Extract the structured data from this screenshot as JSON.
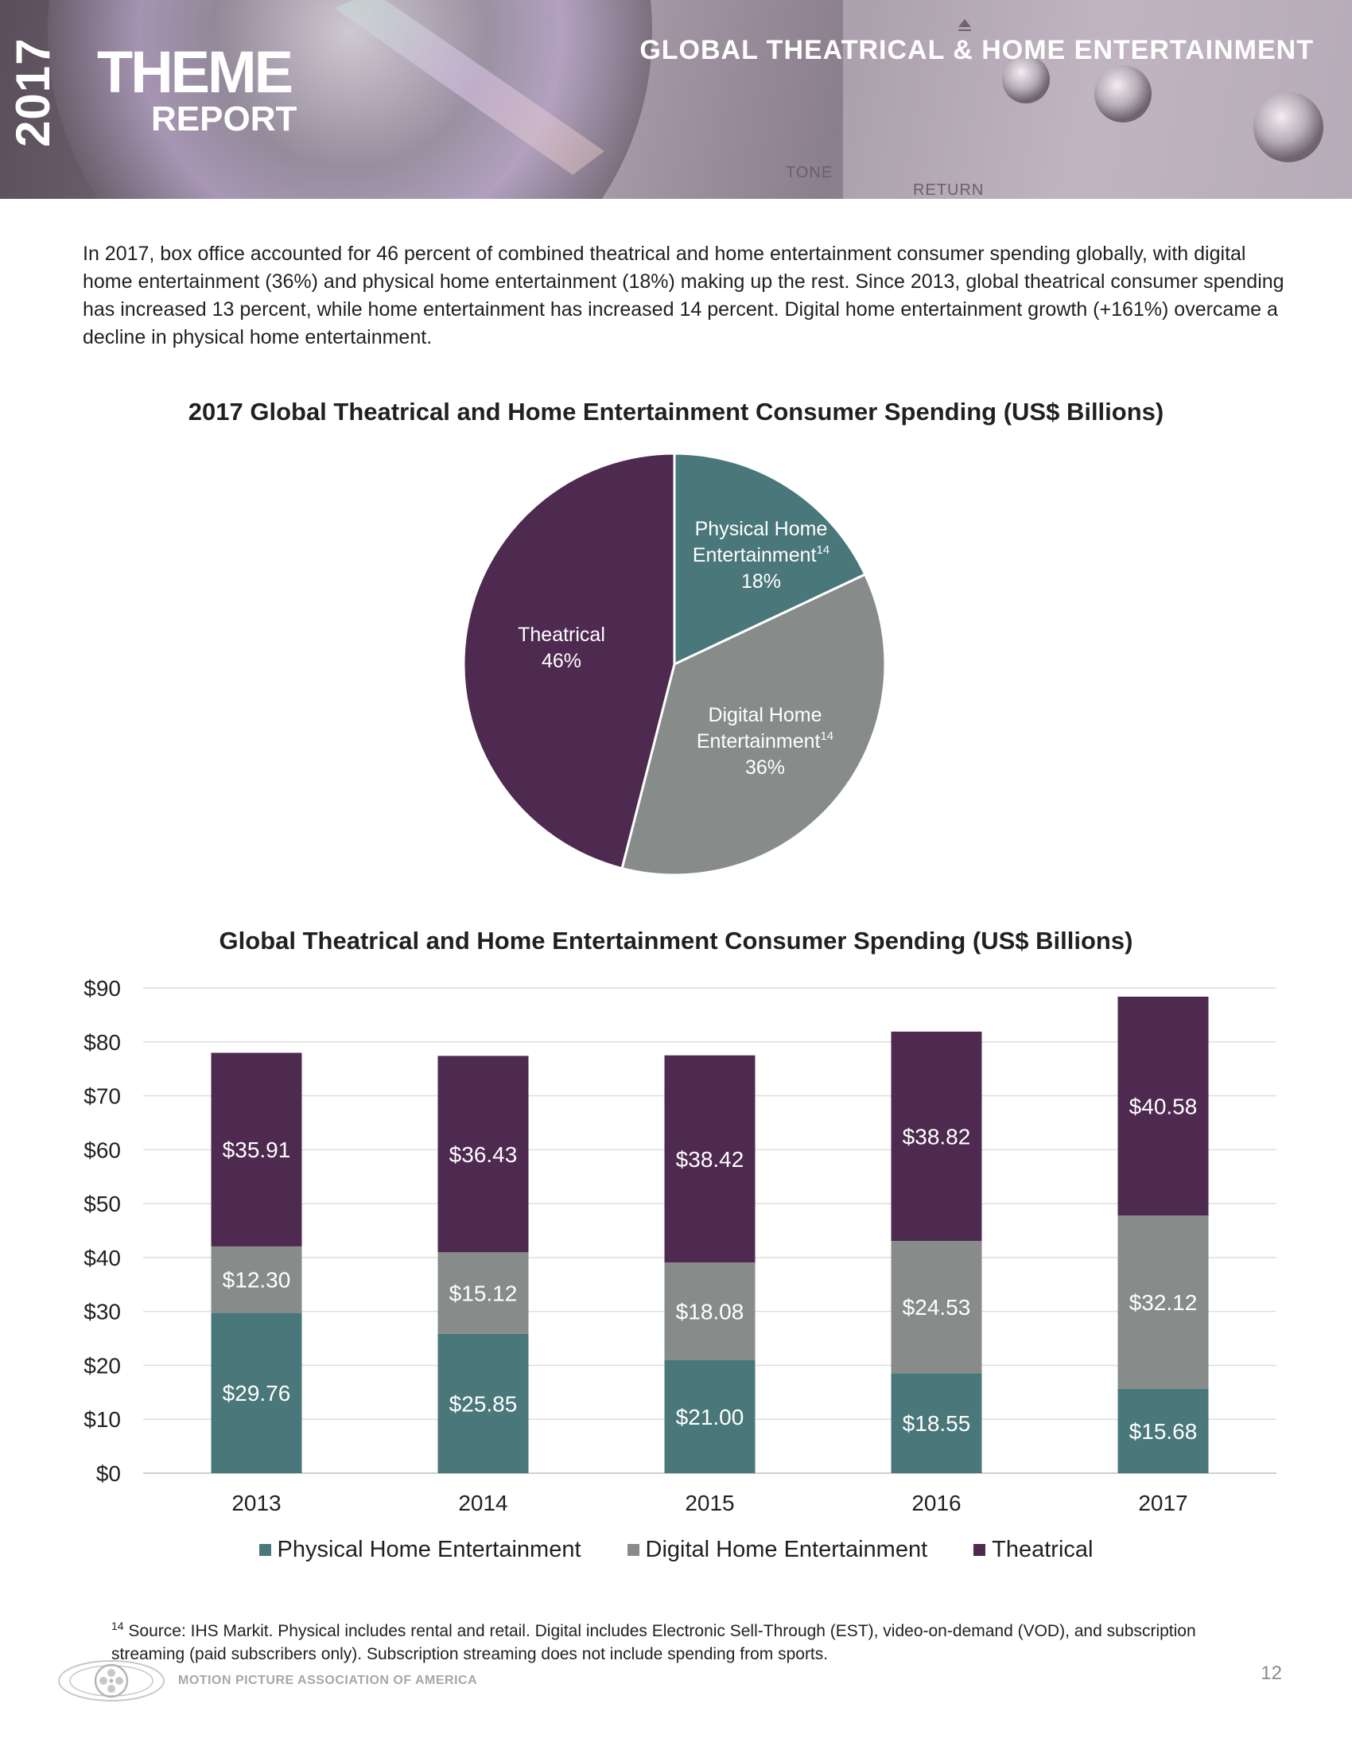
{
  "header": {
    "year": "2017",
    "theme": "THEME",
    "report": "REPORT",
    "section_title": "GLOBAL THEATRICAL & HOME ENTERTAINMENT",
    "photo_labels": [
      "TONE",
      "RETURN"
    ]
  },
  "intro": "In 2017, box office accounted for 46 percent of combined theatrical and home entertainment consumer spending globally, with digital home entertainment (36%) and physical home entertainment (18%) making up the rest. Since 2013, global theatrical consumer spending has increased 13 percent, while home entertainment has increased 14 percent. Digital home entertainment growth (+161%) overcame a decline in physical home entertainment.",
  "chart_data": [
    {
      "type": "pie",
      "title": "2017 Global Theatrical and Home Entertainment Consumer Spending (US$ Billions)",
      "slices": [
        {
          "label": "Physical Home Entertainment",
          "footnote": "14",
          "percent_label": "18%",
          "value": 18,
          "color": "#4a777a"
        },
        {
          "label": "Digital Home Entertainment",
          "footnote": "14",
          "percent_label": "36%",
          "value": 36,
          "color": "#878c8b"
        },
        {
          "label": "Theatrical",
          "footnote": "",
          "percent_label": "46%",
          "value": 46,
          "color": "#4e2a50"
        }
      ]
    },
    {
      "type": "bar",
      "stacked": true,
      "title": "Global Theatrical and Home Entertainment Consumer Spending (US$ Billions)",
      "categories": [
        "2013",
        "2014",
        "2015",
        "2016",
        "2017"
      ],
      "series": [
        {
          "name": "Physical Home Entertainment",
          "color": "#4a777a",
          "values": [
            29.76,
            25.85,
            21.0,
            18.55,
            15.68
          ],
          "labels": [
            "$29.76",
            "$25.85",
            "$21.00",
            "$18.55",
            "$15.68"
          ]
        },
        {
          "name": "Digital Home Entertainment",
          "color": "#878c8b",
          "values": [
            12.3,
            15.12,
            18.08,
            24.53,
            32.12
          ],
          "labels": [
            "$12.30",
            "$15.12",
            "$18.08",
            "$24.53",
            "$32.12"
          ]
        },
        {
          "name": "Theatrical",
          "color": "#4e2a50",
          "values": [
            35.91,
            36.43,
            38.42,
            38.82,
            40.58
          ],
          "labels": [
            "$35.91",
            "$36.43",
            "$38.42",
            "$38.82",
            "$40.58"
          ]
        }
      ],
      "ylim": [
        0,
        90
      ],
      "yticks": [
        "$0",
        "$10",
        "$20",
        "$30",
        "$40",
        "$50",
        "$60",
        "$70",
        "$80",
        "$90"
      ],
      "grid": true,
      "legend": "bottom"
    }
  ],
  "footnote": {
    "marker": "14",
    "text": "Source: IHS Markit. Physical includes rental and retail. Digital includes Electronic Sell-Through (EST), video-on-demand (VOD), and subscription streaming (paid subscribers only). Subscription streaming does not include spending from sports."
  },
  "footer": {
    "org": "MOTION PICTURE ASSOCIATION OF AMERICA",
    "page": "12"
  }
}
